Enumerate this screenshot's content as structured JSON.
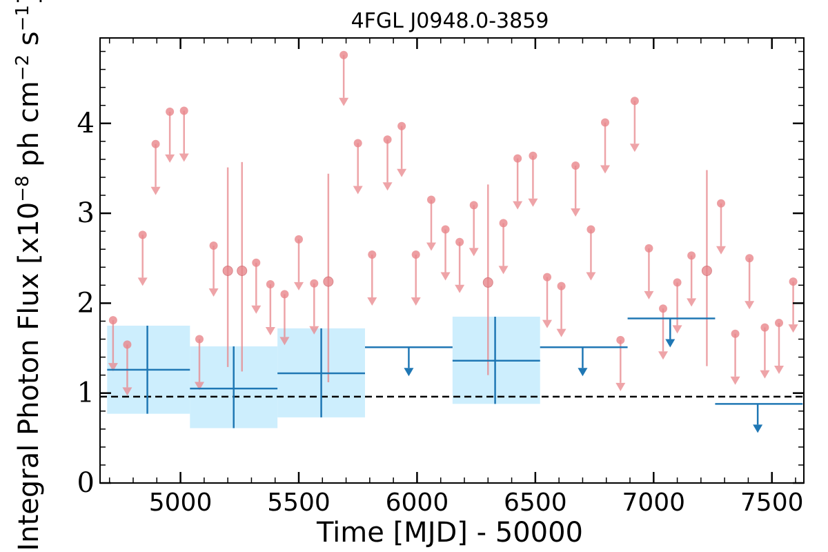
{
  "chart_data": {
    "type": "scatter",
    "title": "4FGL J0948.0-3859",
    "xlabel": "Time [MJD] - 50000",
    "ylabel": "Integral Photon Flux [x10",
    "ylabel_exp1": "−8",
    "ylabel_mid": " ph cm",
    "ylabel_exp2": "−2",
    "ylabel_mid2": " s",
    "ylabel_exp3": "−1",
    "ylabel_end": "]",
    "xlim": [
      4660,
      7635
    ],
    "ylim": [
      0,
      4.95
    ],
    "xticks": [
      5000,
      5500,
      6000,
      6500,
      7000,
      7500
    ],
    "yticks": [
      0,
      1,
      2,
      3,
      4
    ],
    "colors": {
      "fine": "#e8868b",
      "coarse": "#1f77b4",
      "band": "#cdeefd",
      "ref": "#000000"
    },
    "reference_line": {
      "y": 0.96,
      "style": "dashed"
    },
    "fine_upper_limits": [
      {
        "x": 4715,
        "y": 1.81
      },
      {
        "x": 4775,
        "y": 1.54
      },
      {
        "x": 4840,
        "y": 2.76
      },
      {
        "x": 4895,
        "y": 3.77
      },
      {
        "x": 4955,
        "y": 4.13
      },
      {
        "x": 5015,
        "y": 4.14
      },
      {
        "x": 5080,
        "y": 1.6
      },
      {
        "x": 5140,
        "y": 2.64
      },
      {
        "x": 5320,
        "y": 2.45
      },
      {
        "x": 5380,
        "y": 2.21
      },
      {
        "x": 5440,
        "y": 2.1
      },
      {
        "x": 5500,
        "y": 2.71
      },
      {
        "x": 5565,
        "y": 2.22
      },
      {
        "x": 5690,
        "y": 4.76
      },
      {
        "x": 5750,
        "y": 3.78
      },
      {
        "x": 5810,
        "y": 2.54
      },
      {
        "x": 5875,
        "y": 3.82
      },
      {
        "x": 5935,
        "y": 3.97
      },
      {
        "x": 5995,
        "y": 2.54
      },
      {
        "x": 6060,
        "y": 3.15
      },
      {
        "x": 6120,
        "y": 2.82
      },
      {
        "x": 6180,
        "y": 2.68
      },
      {
        "x": 6240,
        "y": 3.09
      },
      {
        "x": 6365,
        "y": 2.89
      },
      {
        "x": 6425,
        "y": 3.61
      },
      {
        "x": 6490,
        "y": 3.64
      },
      {
        "x": 6550,
        "y": 2.29
      },
      {
        "x": 6610,
        "y": 2.19
      },
      {
        "x": 6670,
        "y": 3.53
      },
      {
        "x": 6735,
        "y": 2.82
      },
      {
        "x": 6795,
        "y": 4.01
      },
      {
        "x": 6860,
        "y": 1.59
      },
      {
        "x": 6920,
        "y": 4.25
      },
      {
        "x": 6980,
        "y": 2.61
      },
      {
        "x": 7040,
        "y": 1.94
      },
      {
        "x": 7100,
        "y": 2.23
      },
      {
        "x": 7160,
        "y": 2.53
      },
      {
        "x": 7285,
        "y": 3.11
      },
      {
        "x": 7345,
        "y": 1.66
      },
      {
        "x": 7405,
        "y": 2.5
      },
      {
        "x": 7470,
        "y": 1.73
      },
      {
        "x": 7530,
        "y": 1.78
      },
      {
        "x": 7590,
        "y": 2.24
      }
    ],
    "fine_detections": [
      {
        "x": 5200,
        "y": 2.36,
        "ylo": 1.29,
        "yhi": 3.51
      },
      {
        "x": 5260,
        "y": 2.36,
        "ylo": 1.24,
        "yhi": 3.57
      },
      {
        "x": 5625,
        "y": 2.24,
        "ylo": 1.12,
        "yhi": 3.44
      },
      {
        "x": 6300,
        "y": 2.23,
        "ylo": 1.2,
        "yhi": 3.32
      },
      {
        "x": 7225,
        "y": 2.36,
        "ylo": 1.3,
        "yhi": 3.48
      }
    ],
    "coarse_detections": [
      {
        "x": 4860,
        "xlo": 4690,
        "xhi": 5040,
        "y": 1.26,
        "ylo": 0.77,
        "yhi": 1.75
      },
      {
        "x": 5225,
        "xlo": 5040,
        "xhi": 5410,
        "y": 1.05,
        "ylo": 0.61,
        "yhi": 1.52
      },
      {
        "x": 5595,
        "xlo": 5410,
        "xhi": 5780,
        "y": 1.22,
        "ylo": 0.73,
        "yhi": 1.72
      },
      {
        "x": 6330,
        "xlo": 6150,
        "xhi": 6520,
        "y": 1.36,
        "ylo": 0.88,
        "yhi": 1.85
      }
    ],
    "coarse_upper_limits": [
      {
        "x": 5965,
        "xlo": 5780,
        "xhi": 6150,
        "y": 1.51
      },
      {
        "x": 6700,
        "xlo": 6520,
        "xhi": 6890,
        "y": 1.51
      },
      {
        "x": 7070,
        "xlo": 6890,
        "xhi": 7260,
        "y": 1.83
      },
      {
        "x": 7440,
        "xlo": 7260,
        "xhi": 7630,
        "y": 0.88
      }
    ]
  }
}
